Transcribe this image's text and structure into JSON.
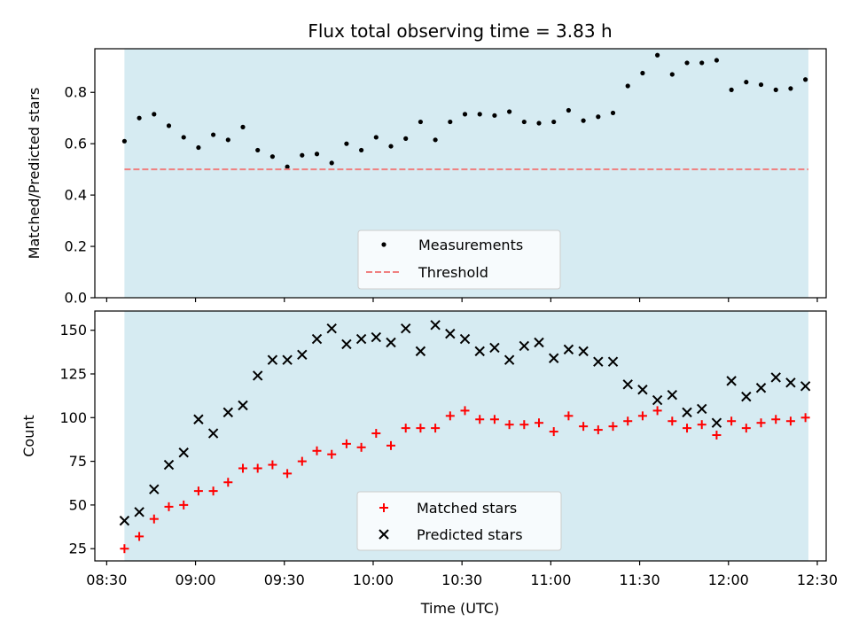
{
  "chart_data": [
    {
      "type": "scatter",
      "title": "Flux total observing time = 3.83 h",
      "xlabel": "",
      "ylabel": "Matched/Predicted stars",
      "ylim": [
        0,
        0.97
      ],
      "yticks": [
        0.0,
        0.2,
        0.4,
        0.6,
        0.8
      ],
      "ytick_labels": [
        "0.0",
        "0.2",
        "0.4",
        "0.6",
        "0.8"
      ],
      "grid": false,
      "legend_position": "bottom-center",
      "shaded_span": {
        "start": "08:36",
        "end": "12:27",
        "color": "#add8e6"
      },
      "threshold": {
        "name": "Threshold",
        "value": 0.5,
        "color": "#f08080",
        "style": "dashed"
      },
      "series": [
        {
          "name": "Measurements",
          "marker": "dot",
          "color": "#000000",
          "points": [
            [
              "08:36",
              0.61
            ],
            [
              "08:41",
              0.7
            ],
            [
              "08:46",
              0.715
            ],
            [
              "08:51",
              0.67
            ],
            [
              "08:56",
              0.625
            ],
            [
              "09:01",
              0.585
            ],
            [
              "09:06",
              0.635
            ],
            [
              "09:11",
              0.615
            ],
            [
              "09:16",
              0.665
            ],
            [
              "09:21",
              0.575
            ],
            [
              "09:26",
              0.55
            ],
            [
              "09:31",
              0.51
            ],
            [
              "09:36",
              0.555
            ],
            [
              "09:41",
              0.56
            ],
            [
              "09:46",
              0.525
            ],
            [
              "09:51",
              0.6
            ],
            [
              "09:56",
              0.575
            ],
            [
              "10:01",
              0.625
            ],
            [
              "10:06",
              0.59
            ],
            [
              "10:11",
              0.62
            ],
            [
              "10:16",
              0.685
            ],
            [
              "10:21",
              0.615
            ],
            [
              "10:26",
              0.685
            ],
            [
              "10:31",
              0.715
            ],
            [
              "10:36",
              0.715
            ],
            [
              "10:41",
              0.71
            ],
            [
              "10:46",
              0.725
            ],
            [
              "10:51",
              0.685
            ],
            [
              "10:56",
              0.68
            ],
            [
              "11:01",
              0.685
            ],
            [
              "11:06",
              0.73
            ],
            [
              "11:11",
              0.69
            ],
            [
              "11:16",
              0.705
            ],
            [
              "11:21",
              0.72
            ],
            [
              "11:26",
              0.825
            ],
            [
              "11:31",
              0.875
            ],
            [
              "11:36",
              0.945
            ],
            [
              "11:41",
              0.87
            ],
            [
              "11:46",
              0.915
            ],
            [
              "11:51",
              0.915
            ],
            [
              "11:56",
              0.925
            ],
            [
              "12:01",
              0.81
            ],
            [
              "12:06",
              0.84
            ],
            [
              "12:11",
              0.83
            ],
            [
              "12:16",
              0.81
            ],
            [
              "12:21",
              0.815
            ],
            [
              "12:26",
              0.85
            ]
          ]
        }
      ]
    },
    {
      "type": "scatter",
      "title": "",
      "xlabel": "Time (UTC)",
      "ylabel": "Count",
      "ylim": [
        18,
        161
      ],
      "yticks": [
        25,
        50,
        75,
        100,
        125,
        150
      ],
      "ytick_labels": [
        "25",
        "50",
        "75",
        "100",
        "125",
        "150"
      ],
      "xlim": [
        "08:26",
        "12:33"
      ],
      "xticks": [
        "08:30",
        "09:00",
        "09:30",
        "10:00",
        "10:30",
        "11:00",
        "11:30",
        "12:00",
        "12:30"
      ],
      "xtick_labels": [
        "08:30",
        "09:00",
        "09:30",
        "10:00",
        "10:30",
        "11:00",
        "11:30",
        "12:00",
        "12:30"
      ],
      "grid": false,
      "legend_position": "bottom-center",
      "shaded_span": {
        "start": "08:36",
        "end": "12:27",
        "color": "#add8e6"
      },
      "series": [
        {
          "name": "Matched stars",
          "marker": "plus",
          "color": "#ff0000",
          "points": [
            [
              "08:36",
              25
            ],
            [
              "08:41",
              32
            ],
            [
              "08:46",
              42
            ],
            [
              "08:51",
              49
            ],
            [
              "08:56",
              50
            ],
            [
              "09:01",
              58
            ],
            [
              "09:06",
              58
            ],
            [
              "09:11",
              63
            ],
            [
              "09:16",
              71
            ],
            [
              "09:21",
              71
            ],
            [
              "09:26",
              73
            ],
            [
              "09:31",
              68
            ],
            [
              "09:36",
              75
            ],
            [
              "09:41",
              81
            ],
            [
              "09:46",
              79
            ],
            [
              "09:51",
              85
            ],
            [
              "09:56",
              83
            ],
            [
              "10:01",
              91
            ],
            [
              "10:06",
              84
            ],
            [
              "10:11",
              94
            ],
            [
              "10:16",
              94
            ],
            [
              "10:21",
              94
            ],
            [
              "10:26",
              101
            ],
            [
              "10:31",
              104
            ],
            [
              "10:36",
              99
            ],
            [
              "10:41",
              99
            ],
            [
              "10:46",
              96
            ],
            [
              "10:51",
              96
            ],
            [
              "10:56",
              97
            ],
            [
              "11:01",
              92
            ],
            [
              "11:06",
              101
            ],
            [
              "11:11",
              95
            ],
            [
              "11:16",
              93
            ],
            [
              "11:21",
              95
            ],
            [
              "11:26",
              98
            ],
            [
              "11:31",
              101
            ],
            [
              "11:36",
              104
            ],
            [
              "11:41",
              98
            ],
            [
              "11:46",
              94
            ],
            [
              "11:51",
              96
            ],
            [
              "11:56",
              90
            ],
            [
              "12:01",
              98
            ],
            [
              "12:06",
              94
            ],
            [
              "12:11",
              97
            ],
            [
              "12:16",
              99
            ],
            [
              "12:21",
              98
            ],
            [
              "12:26",
              100
            ]
          ]
        },
        {
          "name": "Predicted stars",
          "marker": "x",
          "color": "#000000",
          "points": [
            [
              "08:36",
              41
            ],
            [
              "08:41",
              46
            ],
            [
              "08:46",
              59
            ],
            [
              "08:51",
              73
            ],
            [
              "08:56",
              80
            ],
            [
              "09:01",
              99
            ],
            [
              "09:06",
              91
            ],
            [
              "09:11",
              103
            ],
            [
              "09:16",
              107
            ],
            [
              "09:21",
              124
            ],
            [
              "09:26",
              133
            ],
            [
              "09:31",
              133
            ],
            [
              "09:36",
              136
            ],
            [
              "09:41",
              145
            ],
            [
              "09:46",
              151
            ],
            [
              "09:51",
              142
            ],
            [
              "09:56",
              145
            ],
            [
              "10:01",
              146
            ],
            [
              "10:06",
              143
            ],
            [
              "10:11",
              151
            ],
            [
              "10:16",
              138
            ],
            [
              "10:21",
              153
            ],
            [
              "10:26",
              148
            ],
            [
              "10:31",
              145
            ],
            [
              "10:36",
              138
            ],
            [
              "10:41",
              140
            ],
            [
              "10:46",
              133
            ],
            [
              "10:51",
              141
            ],
            [
              "10:56",
              143
            ],
            [
              "11:01",
              134
            ],
            [
              "11:06",
              139
            ],
            [
              "11:11",
              138
            ],
            [
              "11:16",
              132
            ],
            [
              "11:21",
              132
            ],
            [
              "11:26",
              119
            ],
            [
              "11:31",
              116
            ],
            [
              "11:36",
              110
            ],
            [
              "11:41",
              113
            ],
            [
              "11:46",
              103
            ],
            [
              "11:51",
              105
            ],
            [
              "11:56",
              97
            ],
            [
              "12:01",
              121
            ],
            [
              "12:06",
              112
            ],
            [
              "12:11",
              117
            ],
            [
              "12:16",
              123
            ],
            [
              "12:21",
              120
            ],
            [
              "12:26",
              118
            ]
          ]
        }
      ]
    }
  ]
}
